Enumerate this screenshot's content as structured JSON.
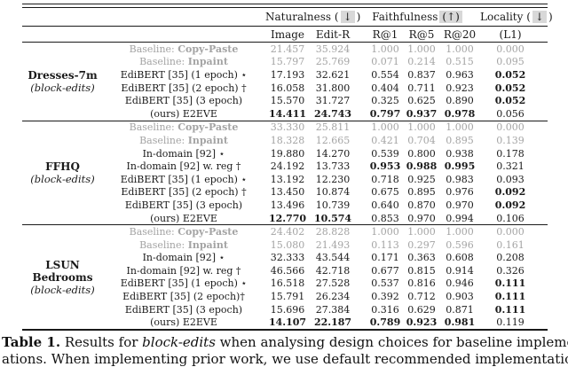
{
  "header": {
    "groups": [
      {
        "label": "Naturalness (",
        "boxed": "↓",
        "suffix": ")"
      },
      {
        "label": "Faithfulness",
        "boxed": "(↑)",
        "suffix": ""
      },
      {
        "label": "Locality (",
        "boxed": "↓",
        "suffix": ")"
      }
    ],
    "subcolumns": [
      "Image",
      "Edit-R",
      "R@1",
      "R@5",
      "R@20",
      "(L1)"
    ]
  },
  "colors": {
    "gray_row": "#a4a4a4",
    "text": "#1a1a1a",
    "highlight": "#d8d8d8"
  },
  "groups": [
    {
      "name_lines": [
        "Dresses-7m"
      ],
      "subname": "(block-edits)",
      "rows": [
        {
          "prefix": "Baseline: ",
          "method": "Copy-Paste",
          "method_bold": true,
          "gray": true,
          "values": [
            "21.457",
            "35.924",
            "1.000",
            "1.000",
            "1.000",
            "0.000"
          ],
          "bold": [
            false,
            false,
            false,
            false,
            false,
            false
          ]
        },
        {
          "prefix": "Baseline: ",
          "method": "Inpaint",
          "method_bold": true,
          "gray": true,
          "values": [
            "15.797",
            "25.769",
            "0.071",
            "0.214",
            "0.515",
            "0.095"
          ],
          "bold": [
            false,
            false,
            false,
            false,
            false,
            false
          ]
        },
        {
          "method": "EdiBERT [35] (1 epoch) ⋆",
          "values": [
            "17.193",
            "32.621",
            "0.554",
            "0.837",
            "0.963",
            "0.052"
          ],
          "bold": [
            false,
            false,
            false,
            false,
            false,
            true
          ]
        },
        {
          "method": "EdiBERT [35] (2 epoch) †",
          "values": [
            "16.058",
            "31.800",
            "0.404",
            "0.711",
            "0.923",
            "0.052"
          ],
          "bold": [
            false,
            false,
            false,
            false,
            false,
            true
          ]
        },
        {
          "method": "EdiBERT [35] (3 epoch)",
          "values": [
            "15.570",
            "31.727",
            "0.325",
            "0.625",
            "0.890",
            "0.052"
          ],
          "bold": [
            false,
            false,
            false,
            false,
            false,
            true
          ]
        },
        {
          "method": "(ours) E2EVE",
          "values": [
            "14.411",
            "24.743",
            "0.797",
            "0.937",
            "0.978",
            "0.056"
          ],
          "bold": [
            true,
            true,
            true,
            true,
            true,
            false
          ]
        }
      ]
    },
    {
      "name_lines": [
        "FFHQ"
      ],
      "subname": "(block-edits)",
      "rows": [
        {
          "prefix": "Baseline: ",
          "method": "Copy-Paste",
          "method_bold": true,
          "gray": true,
          "values": [
            "33.330",
            "25.811",
            "1.000",
            "1.000",
            "1.000",
            "0.000"
          ],
          "bold": [
            false,
            false,
            false,
            false,
            false,
            false
          ]
        },
        {
          "prefix": "Baseline: ",
          "method": "Inpaint",
          "method_bold": true,
          "gray": true,
          "values": [
            "18.328",
            "12.665",
            "0.421",
            "0.704",
            "0.895",
            "0.139"
          ],
          "bold": [
            false,
            false,
            false,
            false,
            false,
            false
          ]
        },
        {
          "method": "In-domain [92] ⋆",
          "values": [
            "19.880",
            "14.270",
            "0.539",
            "0.800",
            "0.938",
            "0.178"
          ],
          "bold": [
            false,
            false,
            false,
            false,
            false,
            false
          ]
        },
        {
          "method": "In-domain [92] w. reg †",
          "values": [
            "24.192",
            "13.733",
            "0.953",
            "0.988",
            "0.995",
            "0.321"
          ],
          "bold": [
            false,
            false,
            true,
            true,
            true,
            false
          ]
        },
        {
          "method": "EdiBERT [35] (1 epoch) ⋆",
          "values": [
            "13.192",
            "12.230",
            "0.718",
            "0.925",
            "0.983",
            "0.093"
          ],
          "bold": [
            false,
            false,
            false,
            false,
            false,
            false
          ]
        },
        {
          "method": "EdiBERT [35] (2 epoch) †",
          "values": [
            "13.450",
            "10.874",
            "0.675",
            "0.895",
            "0.976",
            "0.092"
          ],
          "bold": [
            false,
            false,
            false,
            false,
            false,
            true
          ]
        },
        {
          "method": "EdiBERT [35] (3 epoch)",
          "values": [
            "13.496",
            "10.739",
            "0.640",
            "0.870",
            "0.970",
            "0.092"
          ],
          "bold": [
            false,
            false,
            false,
            false,
            false,
            true
          ]
        },
        {
          "method": "(ours) E2EVE",
          "values": [
            "12.770",
            "10.574",
            "0.853",
            "0.970",
            "0.994",
            "0.106"
          ],
          "bold": [
            true,
            true,
            false,
            false,
            false,
            false
          ]
        }
      ]
    },
    {
      "name_lines": [
        "LSUN",
        "Bedrooms"
      ],
      "subname": "(block-edits)",
      "rows": [
        {
          "prefix": "Baseline: ",
          "method": "Copy-Paste",
          "method_bold": true,
          "gray": true,
          "values": [
            "24.402",
            "28.828",
            "1.000",
            "1.000",
            "1.000",
            "0.000"
          ],
          "bold": [
            false,
            false,
            false,
            false,
            false,
            false
          ]
        },
        {
          "prefix": "Baseline: ",
          "method": "Inpaint",
          "method_bold": true,
          "gray": true,
          "values": [
            "15.080",
            "21.493",
            "0.113",
            "0.297",
            "0.596",
            "0.161"
          ],
          "bold": [
            false,
            false,
            false,
            false,
            false,
            false
          ]
        },
        {
          "method": "In-domain [92] ⋆",
          "values": [
            "32.333",
            "43.544",
            "0.171",
            "0.363",
            "0.608",
            "0.208"
          ],
          "bold": [
            false,
            false,
            false,
            false,
            false,
            false
          ]
        },
        {
          "method": "In-domain [92] w. reg †",
          "values": [
            "46.566",
            "42.718",
            "0.677",
            "0.815",
            "0.914",
            "0.326"
          ],
          "bold": [
            false,
            false,
            false,
            false,
            false,
            false
          ]
        },
        {
          "method": "EdiBERT [35] (1 epoch) ⋆",
          "values": [
            "16.518",
            "27.528",
            "0.537",
            "0.816",
            "0.946",
            "0.111"
          ],
          "bold": [
            false,
            false,
            false,
            false,
            false,
            true
          ]
        },
        {
          "method": "EdiBERT [35] (2 epoch)†",
          "values": [
            "15.791",
            "26.234",
            "0.392",
            "0.712",
            "0.903",
            "0.111"
          ],
          "bold": [
            false,
            false,
            false,
            false,
            false,
            true
          ]
        },
        {
          "method": "EdiBERT [35] (3 epoch)",
          "values": [
            "15.696",
            "27.384",
            "0.316",
            "0.629",
            "0.871",
            "0.111"
          ],
          "bold": [
            false,
            false,
            false,
            false,
            false,
            true
          ]
        },
        {
          "method": "(ours) E2EVE",
          "values": [
            "14.107",
            "22.187",
            "0.789",
            "0.923",
            "0.981",
            "0.119"
          ],
          "bold": [
            true,
            true,
            true,
            true,
            true,
            false
          ]
        }
      ]
    }
  ],
  "caption": {
    "label": "Table 1.",
    "line1_pre": "  Results for ",
    "line1_italic": "block-edits",
    "line1_post": " when analysing design choices for baseline implemen-",
    "line2": "ations. When implementing prior work, we use default recommended implementation"
  }
}
